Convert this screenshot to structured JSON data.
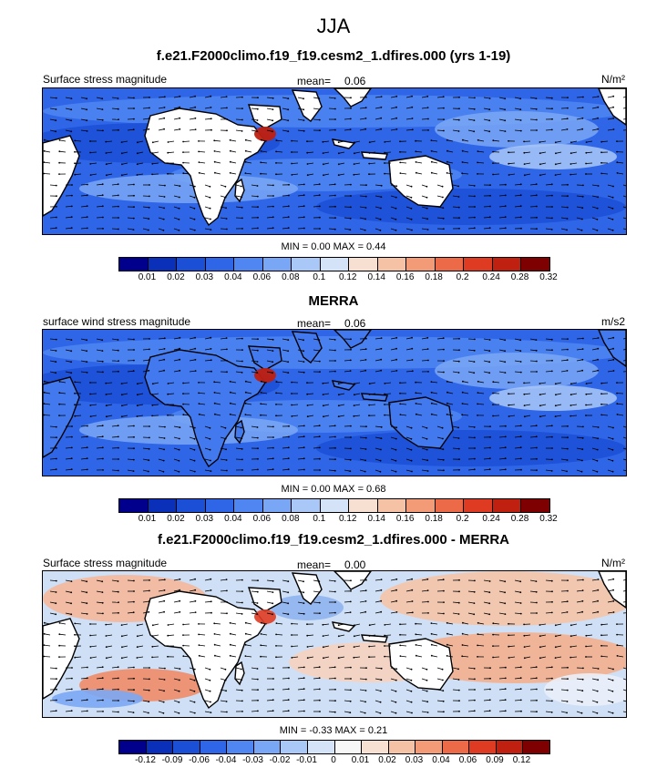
{
  "page_title": "JJA",
  "panels": [
    {
      "title": "f.e21.F2000climo.f19_f19.cesm2_1.dfires.000 (yrs 1-19)",
      "left_label": "Surface stress magnitude",
      "mean_label": "mean=",
      "mean_value": "0.06",
      "units": "N/m²",
      "minmax": "MIN =  0.00 MAX =   0.44",
      "colorbar_labels": [
        "0.01",
        "0.02",
        "0.03",
        "0.04",
        "0.06",
        "0.08",
        "0.1",
        "0.12",
        "0.14",
        "0.16",
        "0.18",
        "0.2",
        "0.24",
        "0.28",
        "0.32"
      ],
      "colorbar_colors": [
        "#00008c",
        "#0a2fb8",
        "#1a4fd6",
        "#2f66e8",
        "#4f86f2",
        "#7aa7f5",
        "#a9c8f7",
        "#d4e3f7",
        "#f7e0d2",
        "#f6c2a5",
        "#f39a76",
        "#ec6a48",
        "#df3b22",
        "#bf2010",
        "#7f0000"
      ],
      "map_style": "blue"
    },
    {
      "title": "MERRA",
      "left_label": "surface wind stress magnitude",
      "mean_label": "mean=",
      "mean_value": "0.06",
      "units": "m/s2",
      "minmax": "MIN =  0.00 MAX =   0.68",
      "colorbar_labels": [
        "0.01",
        "0.02",
        "0.03",
        "0.04",
        "0.06",
        "0.08",
        "0.1",
        "0.12",
        "0.14",
        "0.16",
        "0.18",
        "0.2",
        "0.24",
        "0.28",
        "0.32"
      ],
      "colorbar_colors": [
        "#00008c",
        "#0a2fb8",
        "#1a4fd6",
        "#2f66e8",
        "#4f86f2",
        "#7aa7f5",
        "#a9c8f7",
        "#d4e3f7",
        "#f7e0d2",
        "#f6c2a5",
        "#f39a76",
        "#ec6a48",
        "#df3b22",
        "#bf2010",
        "#7f0000"
      ],
      "map_style": "blue-full"
    },
    {
      "title": "f.e21.F2000climo.f19_f19.cesm2_1.dfires.000 - MERRA",
      "left_label": "Surface stress magnitude",
      "mean_label": "mean=",
      "mean_value": "0.00",
      "units": "N/m²",
      "minmax": "MIN = -0.33 MAX =   0.21",
      "colorbar_labels": [
        "-0.12",
        "-0.09",
        "-0.06",
        "-0.04",
        "-0.03",
        "-0.02",
        "-0.01",
        "0",
        "0.01",
        "0.02",
        "0.03",
        "0.04",
        "0.06",
        "0.09",
        "0.12"
      ],
      "colorbar_colors": [
        "#00008c",
        "#0a2fb8",
        "#1a4fd6",
        "#2f66e8",
        "#4f86f2",
        "#7aa7f5",
        "#a9c8f7",
        "#d4e3f7",
        "#f7f7f7",
        "#f7e0d2",
        "#f6c2a5",
        "#f39a76",
        "#ec6a48",
        "#df3b22",
        "#bf2010",
        "#7f0000"
      ],
      "map_style": "diff"
    }
  ]
}
